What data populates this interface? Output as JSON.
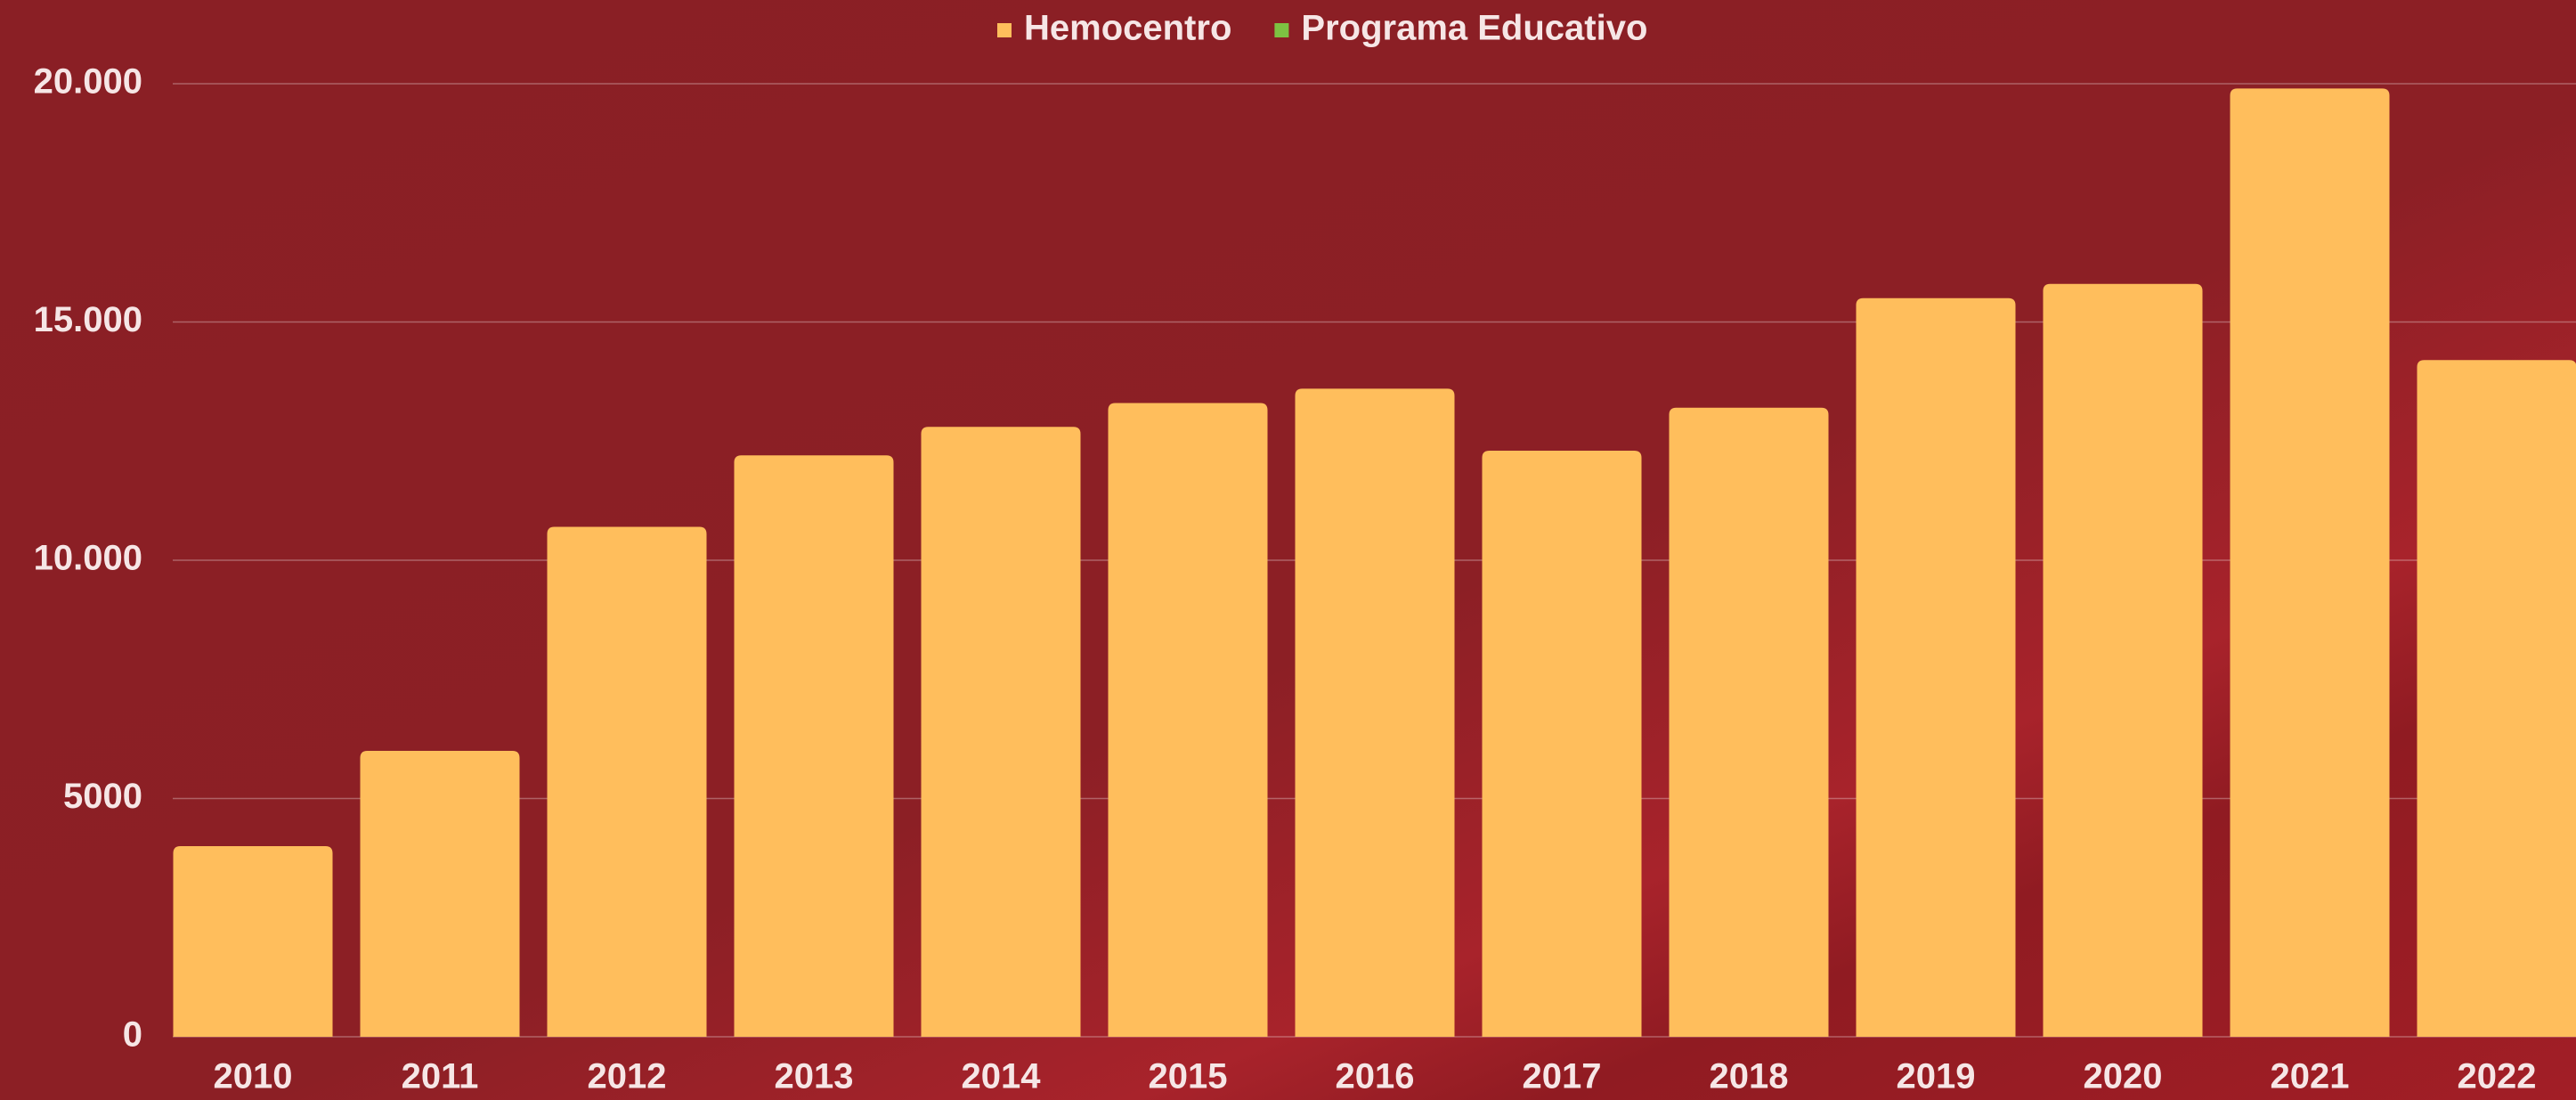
{
  "chart_data": {
    "type": "bar",
    "categories": [
      "2010",
      "2011",
      "2012",
      "2013",
      "2014",
      "2015",
      "2016",
      "2017",
      "2018",
      "2019",
      "2020",
      "2021",
      "2022"
    ],
    "series": [
      {
        "name": "Hemocentro",
        "color": "#ffbe5c",
        "values": [
          4000,
          6000,
          10700,
          12200,
          12800,
          13300,
          13600,
          12300,
          13200,
          15500,
          15800,
          19900,
          14200
        ]
      },
      {
        "name": "Programa Educativo",
        "color": "#7dc242",
        "values": [
          null,
          null,
          null,
          null,
          null,
          null,
          null,
          null,
          null,
          null,
          null,
          null,
          null
        ]
      }
    ],
    "ylim": [
      0,
      20000
    ],
    "yticks": [
      0,
      5000,
      {
        "value": 10000,
        "label": "10.000"
      },
      {
        "value": 15000,
        "label": "15.000"
      },
      {
        "value": 20000,
        "label": "20.000"
      }
    ],
    "grid": true,
    "legend": "top"
  }
}
